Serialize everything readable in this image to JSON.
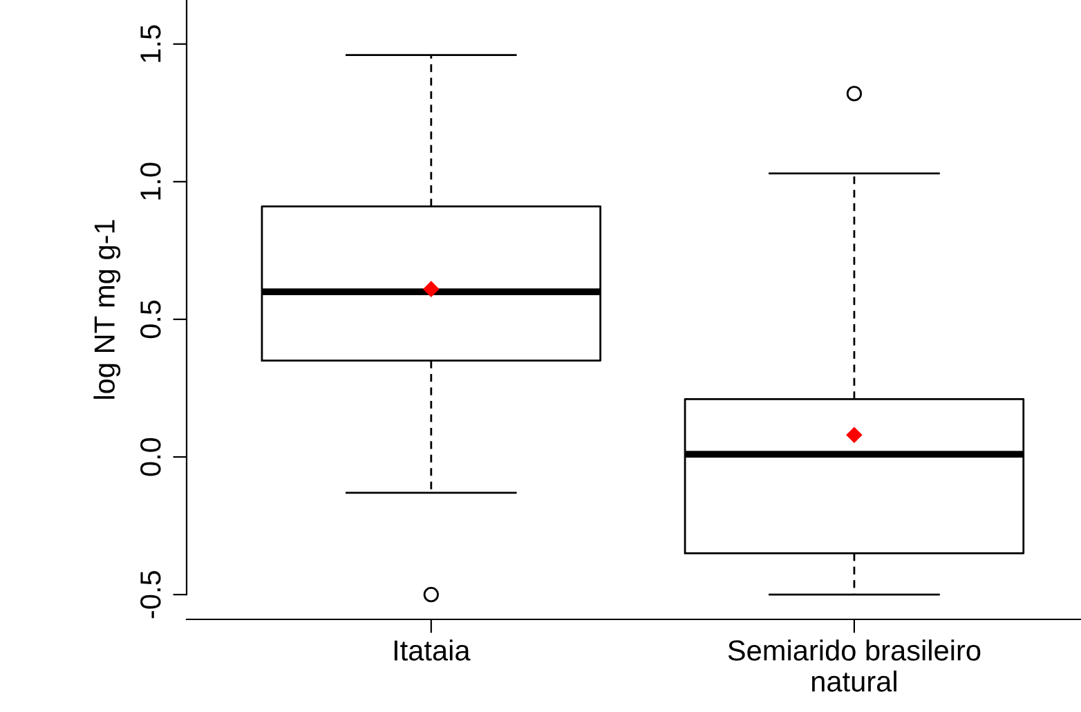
{
  "chart_data": {
    "type": "box",
    "ylabel": "log NT mg g-1",
    "categories": [
      "Itataia",
      "Semiarido brasileiro\nnatural"
    ],
    "boxes": [
      {
        "low": -0.13,
        "q1": 0.35,
        "median": 0.6,
        "q3": 0.91,
        "high": 1.46,
        "mean": 0.61,
        "outliers": [
          -0.5
        ]
      },
      {
        "low": -0.5,
        "q1": -0.35,
        "median": 0.01,
        "q3": 0.21,
        "high": 1.03,
        "mean": 0.08,
        "outliers": [
          1.32
        ]
      }
    ],
    "ylim": [
      -0.59,
      1.66
    ],
    "yticks": [
      {
        "value": -0.5,
        "label": "-0.5"
      },
      {
        "value": 0,
        "label": "0.0"
      },
      {
        "value": 0.5,
        "label": "0.5"
      },
      {
        "value": 1,
        "label": "1.0"
      },
      {
        "value": 1.5,
        "label": "1.5"
      }
    ],
    "grid": false
  }
}
